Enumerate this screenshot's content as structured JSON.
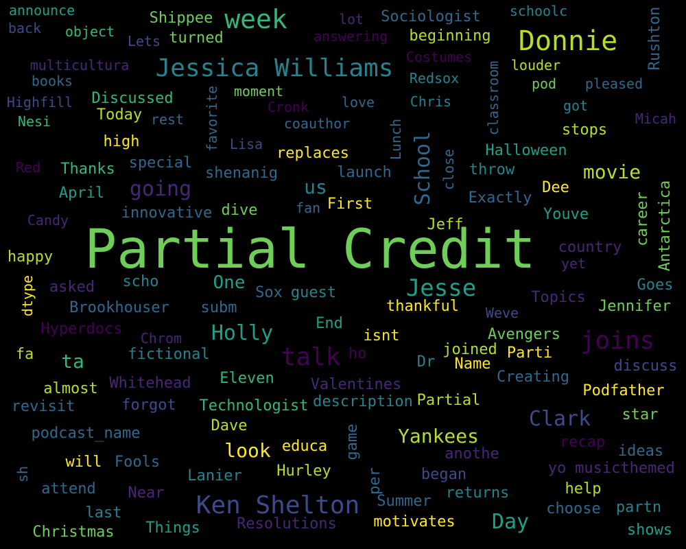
{
  "palette": {
    "background": "#000000",
    "c1": "#440154",
    "c2": "#482777",
    "c3": "#3e4a89",
    "c4": "#31688e",
    "c5": "#26828e",
    "c6": "#1f9e89",
    "c7": "#35b779",
    "c8": "#6ece58",
    "c9": "#b5de2b",
    "c10": "#fde725"
  },
  "words": [
    {
      "text": "Partial Credit",
      "color": "#6ece58"
    },
    {
      "text": "Jessica Williams",
      "color": "#26828e"
    },
    {
      "text": "Donnie",
      "color": "#b5de2b"
    },
    {
      "text": "week",
      "color": "#35b779"
    },
    {
      "text": "Ken Shelton",
      "color": "#3e4a89"
    },
    {
      "text": "Jesse",
      "color": "#1f9e89"
    },
    {
      "text": "joins",
      "color": "#440154"
    },
    {
      "text": "talk",
      "color": "#440154"
    },
    {
      "text": "Holly",
      "color": "#1f9e89"
    },
    {
      "text": "Yankees",
      "color": "#b5de2b"
    },
    {
      "text": "Clark",
      "color": "#3e4a89"
    },
    {
      "text": "movie",
      "color": "#b5de2b"
    },
    {
      "text": "going",
      "color": "#482777"
    },
    {
      "text": "School",
      "color": "#31688e"
    },
    {
      "text": "look",
      "color": "#fde725"
    },
    {
      "text": "Day",
      "color": "#1f9e89"
    },
    {
      "text": "us",
      "color": "#26828e"
    },
    {
      "text": "ta",
      "color": "#35b779"
    },
    {
      "text": "One",
      "color": "#1f9e89"
    },
    {
      "text": "announce",
      "color": "#1f9e89"
    },
    {
      "text": "back",
      "color": "#3e4a89"
    },
    {
      "text": "object",
      "color": "#35b779"
    },
    {
      "text": "Shippee",
      "color": "#6ece58"
    },
    {
      "text": "Lets",
      "color": "#3e4a89"
    },
    {
      "text": "turned",
      "color": "#6ece58"
    },
    {
      "text": "lot",
      "color": "#482777"
    },
    {
      "text": "answering",
      "color": "#440154"
    },
    {
      "text": "Sociologist",
      "color": "#31688e"
    },
    {
      "text": "beginning",
      "color": "#b5de2b"
    },
    {
      "text": "schoolc",
      "color": "#26828e"
    },
    {
      "text": "Rushton",
      "color": "#31688e"
    },
    {
      "text": "Costumes",
      "color": "#440154"
    },
    {
      "text": "multicultura",
      "color": "#482777"
    },
    {
      "text": "classroom",
      "color": "#31688e"
    },
    {
      "text": "louder",
      "color": "#b5de2b"
    },
    {
      "text": "books",
      "color": "#31688e"
    },
    {
      "text": "Redsox",
      "color": "#26828e"
    },
    {
      "text": "pod",
      "color": "#6ece58"
    },
    {
      "text": "pleased",
      "color": "#31688e"
    },
    {
      "text": "Highfill",
      "color": "#3e4a89"
    },
    {
      "text": "Discussed",
      "color": "#35b779"
    },
    {
      "text": "moment",
      "color": "#6ece58"
    },
    {
      "text": "favorite",
      "color": "#31688e"
    },
    {
      "text": "Cronk",
      "color": "#440154"
    },
    {
      "text": "love",
      "color": "#31688e"
    },
    {
      "text": "Chris",
      "color": "#26828e"
    },
    {
      "text": "got",
      "color": "#26828e"
    },
    {
      "text": "Nesi",
      "color": "#35b779"
    },
    {
      "text": "Today",
      "color": "#b5de2b"
    },
    {
      "text": "rest",
      "color": "#31688e"
    },
    {
      "text": "coauthor",
      "color": "#31688e"
    },
    {
      "text": "Micah",
      "color": "#482777"
    },
    {
      "text": "stops",
      "color": "#b5de2b"
    },
    {
      "text": "high",
      "color": "#fde725"
    },
    {
      "text": "Lisa",
      "color": "#3e4a89"
    },
    {
      "text": "Lunch",
      "color": "#31688e"
    },
    {
      "text": "replaces",
      "color": "#fde725"
    },
    {
      "text": "Halloween",
      "color": "#1f9e89"
    },
    {
      "text": "Red",
      "color": "#440154"
    },
    {
      "text": "Thanks",
      "color": "#35b779"
    },
    {
      "text": "special",
      "color": "#31688e"
    },
    {
      "text": "shenanig",
      "color": "#31688e"
    },
    {
      "text": "launch",
      "color": "#31688e"
    },
    {
      "text": "close",
      "color": "#31688e"
    },
    {
      "text": "throw",
      "color": "#26828e"
    },
    {
      "text": "Antarctica",
      "color": "#6ece58"
    },
    {
      "text": "April",
      "color": "#1f9e89"
    },
    {
      "text": "Dee",
      "color": "#fde725"
    },
    {
      "text": "Candy",
      "color": "#482777"
    },
    {
      "text": "innovative",
      "color": "#31688e"
    },
    {
      "text": "dive",
      "color": "#6ece58"
    },
    {
      "text": "fan",
      "color": "#31688e"
    },
    {
      "text": "First",
      "color": "#fde725"
    },
    {
      "text": "Exactly",
      "color": "#31688e"
    },
    {
      "text": "career",
      "color": "#6ece58"
    },
    {
      "text": "Youve",
      "color": "#1f9e89"
    },
    {
      "text": "Jeff",
      "color": "#b5de2b"
    },
    {
      "text": "country",
      "color": "#482777"
    },
    {
      "text": "happy",
      "color": "#b5de2b"
    },
    {
      "text": "yet",
      "color": "#482777"
    },
    {
      "text": "scho",
      "color": "#26828e"
    },
    {
      "text": "asked",
      "color": "#482777"
    },
    {
      "text": "dtype",
      "color": "#fde725"
    },
    {
      "text": "Sox",
      "color": "#31688e"
    },
    {
      "text": "guest",
      "color": "#26828e"
    },
    {
      "text": "Goes",
      "color": "#26828e"
    },
    {
      "text": "Brookhouser",
      "color": "#31688e"
    },
    {
      "text": "subm",
      "color": "#31688e"
    },
    {
      "text": "thankful",
      "color": "#fde725"
    },
    {
      "text": "Topics",
      "color": "#482777"
    },
    {
      "text": "Jennifer",
      "color": "#6ece58"
    },
    {
      "text": "Hyperdocs",
      "color": "#440154"
    },
    {
      "text": "End",
      "color": "#1f9e89"
    },
    {
      "text": "Weve",
      "color": "#3e4a89"
    },
    {
      "text": "Chrom",
      "color": "#482777"
    },
    {
      "text": "isnt",
      "color": "#fde725"
    },
    {
      "text": "Avengers",
      "color": "#6ece58"
    },
    {
      "text": "fa",
      "color": "#b5de2b"
    },
    {
      "text": "fictional",
      "color": "#26828e"
    },
    {
      "text": "ho",
      "color": "#440154"
    },
    {
      "text": "joined",
      "color": "#b5de2b"
    },
    {
      "text": "Parti",
      "color": "#fde725"
    },
    {
      "text": "discuss",
      "color": "#3e4a89"
    },
    {
      "text": "Dr",
      "color": "#26828e"
    },
    {
      "text": "Name",
      "color": "#fde725"
    },
    {
      "text": "Whitehead",
      "color": "#482777"
    },
    {
      "text": "Eleven",
      "color": "#35b779"
    },
    {
      "text": "Valentines",
      "color": "#482777"
    },
    {
      "text": "Creating",
      "color": "#31688e"
    },
    {
      "text": "almost",
      "color": "#b5de2b"
    },
    {
      "text": "Podfather",
      "color": "#fde725"
    },
    {
      "text": "revisit",
      "color": "#31688e"
    },
    {
      "text": "forgot",
      "color": "#3e4a89"
    },
    {
      "text": "Technologist",
      "color": "#35b779"
    },
    {
      "text": "description",
      "color": "#26828e"
    },
    {
      "text": "Partial",
      "color": "#b5de2b"
    },
    {
      "text": "star",
      "color": "#6ece58"
    },
    {
      "text": "podcast_name",
      "color": "#31688e"
    },
    {
      "text": "Dave",
      "color": "#b5de2b"
    },
    {
      "text": "game",
      "color": "#31688e"
    },
    {
      "text": "educa",
      "color": "#fde725"
    },
    {
      "text": "recap",
      "color": "#440154"
    },
    {
      "text": "anothe",
      "color": "#482777"
    },
    {
      "text": "ideas",
      "color": "#31688e"
    },
    {
      "text": "will",
      "color": "#fde725"
    },
    {
      "text": "Fools",
      "color": "#31688e"
    },
    {
      "text": "sh",
      "color": "#31688e"
    },
    {
      "text": "Lanier",
      "color": "#26828e"
    },
    {
      "text": "Hurley",
      "color": "#b5de2b"
    },
    {
      "text": "per",
      "color": "#31688e"
    },
    {
      "text": "began",
      "color": "#3e4a89"
    },
    {
      "text": "yo",
      "color": "#482777"
    },
    {
      "text": "musicthemed",
      "color": "#482777"
    },
    {
      "text": "attend",
      "color": "#31688e"
    },
    {
      "text": "Near",
      "color": "#482777"
    },
    {
      "text": "returns",
      "color": "#26828e"
    },
    {
      "text": "help",
      "color": "#b5de2b"
    },
    {
      "text": "Summer",
      "color": "#31688e"
    },
    {
      "text": "choose",
      "color": "#31688e"
    },
    {
      "text": "partn",
      "color": "#26828e"
    },
    {
      "text": "last",
      "color": "#26828e"
    },
    {
      "text": "Christmas",
      "color": "#6ece58"
    },
    {
      "text": "Things",
      "color": "#1f9e89"
    },
    {
      "text": "Resolutions",
      "color": "#482777"
    },
    {
      "text": "motivates",
      "color": "#fde725"
    },
    {
      "text": "shows",
      "color": "#1f9e89"
    }
  ]
}
